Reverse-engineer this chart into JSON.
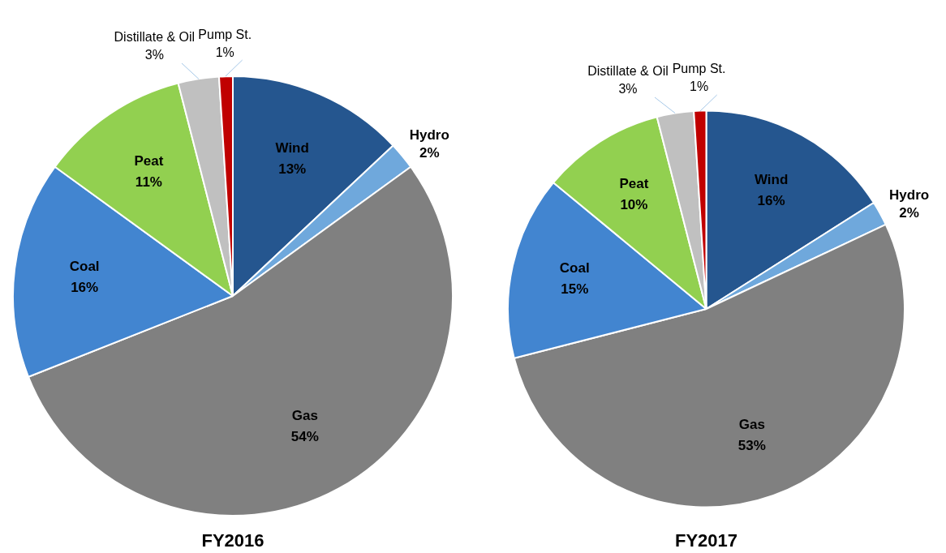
{
  "chart_data": [
    {
      "type": "pie",
      "title": "FY2016",
      "categories": [
        "Wind",
        "Hydro",
        "Gas",
        "Coal",
        "Peat",
        "Distillate & Oil",
        "Pump St."
      ],
      "values": [
        13,
        2,
        54,
        16,
        11,
        3,
        1
      ],
      "colors": [
        "#25568f",
        "#6fa8dc",
        "#808080",
        "#4285d0",
        "#92d050",
        "#c0c0c0",
        "#c00000"
      ],
      "value_labels": [
        "13%",
        "2%",
        "54%",
        "16%",
        "11%",
        "3%",
        "1%"
      ],
      "legend": false
    },
    {
      "type": "pie",
      "title": "FY2017",
      "categories": [
        "Wind",
        "Hydro",
        "Gas",
        "Coal",
        "Peat",
        "Distillate & Oil",
        "Pump St."
      ],
      "values": [
        16,
        2,
        53,
        15,
        10,
        3,
        1
      ],
      "colors": [
        "#25568f",
        "#6fa8dc",
        "#808080",
        "#4285d0",
        "#92d050",
        "#c0c0c0",
        "#c00000"
      ],
      "value_labels": [
        "16%",
        "2%",
        "53%",
        "15%",
        "10%",
        "3%",
        "1%"
      ],
      "legend": false
    }
  ]
}
